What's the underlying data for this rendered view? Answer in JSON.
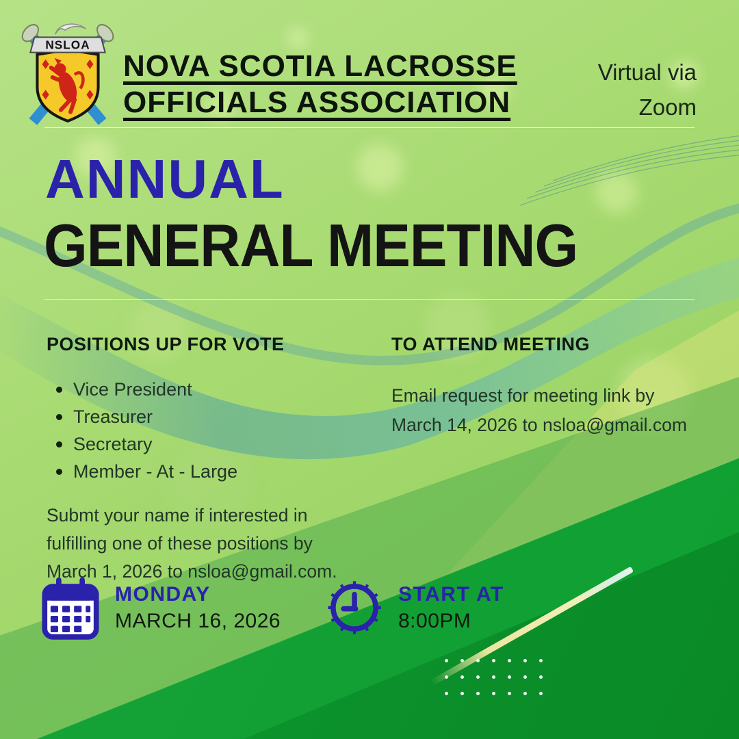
{
  "poster": {
    "org": {
      "crest_label": "NSLOA",
      "name_line1": "NOVA SCOTIA LACROSSE",
      "name_line2": "OFFICIALS ASSOCIATION"
    },
    "format": {
      "line1": "Virtual via",
      "line2": "Zoom"
    },
    "title": {
      "line1": "ANNUAL",
      "line2": "GENERAL MEETING"
    },
    "positions": {
      "heading": "POSITIONS UP FOR VOTE",
      "items": [
        "Vice President",
        "Treasurer",
        "Secretary",
        "Member - At - Large"
      ],
      "note": "Submt your name if interested  in\nfulfilling  one of these positions by\nMarch 1, 2026 to nsloa@gmail.com."
    },
    "attend": {
      "heading": "TO ATTEND MEETING",
      "note": "Email request for meeting link by\nMarch 14,  2026 to nsloa@gmail.com"
    },
    "schedule": {
      "day": "MONDAY",
      "date": "MARCH 16, 2026",
      "start_label": "START AT",
      "start_time": "8:00PM"
    },
    "icons": [
      "nsloa-crest-logo",
      "calendar-icon",
      "clock-icon"
    ],
    "colors": {
      "accent_blue": "#2a22ab",
      "light_green": "#a7da70",
      "band_green": "#4aaa4a",
      "dark_green": "#0f9330",
      "teal_wave": "#4a9fb8",
      "cream_stripe": "#efe9ab",
      "heading_dark": "#0c140c",
      "body_text": "#213626"
    }
  }
}
